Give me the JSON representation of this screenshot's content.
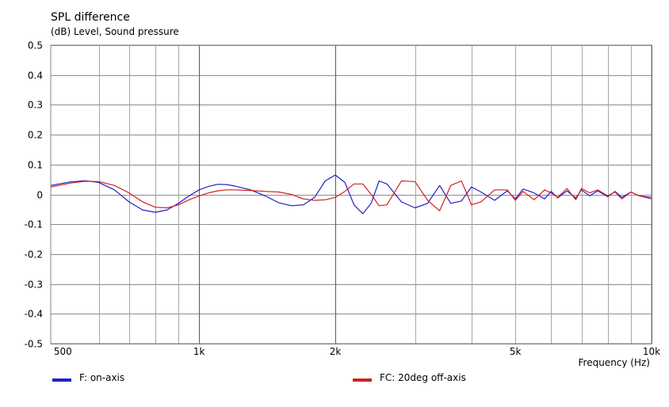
{
  "chart_data": {
    "type": "line",
    "title": "SPL difference",
    "subtitle": "(dB)  Level, Sound pressure",
    "xlabel": "Frequency  (Hz)",
    "x_scale": "log",
    "xlim": [
      470,
      10000
    ],
    "ylim": [
      -0.5,
      0.5
    ],
    "y_ticks": [
      {
        "value": 0.5,
        "label": "0.5"
      },
      {
        "value": 0.4,
        "label": "0.4"
      },
      {
        "value": 0.3,
        "label": "0.3"
      },
      {
        "value": 0.2,
        "label": "0.2"
      },
      {
        "value": 0.1,
        "label": "0.1"
      },
      {
        "value": 0,
        "label": "0"
      },
      {
        "value": -0.1,
        "label": "-0.1"
      },
      {
        "value": -0.2,
        "label": "-0.2"
      },
      {
        "value": -0.3,
        "label": "-0.3"
      },
      {
        "value": -0.4,
        "label": "-0.4"
      },
      {
        "value": -0.5,
        "label": "-0.5"
      }
    ],
    "x_tick_labels": [
      {
        "value": 500,
        "label": "500"
      },
      {
        "value": 1000,
        "label": "1k"
      },
      {
        "value": 2000,
        "label": "2k"
      },
      {
        "value": 5000,
        "label": "5k"
      },
      {
        "value": 10000,
        "label": "10k"
      }
    ],
    "x_major_grid": [
      1000,
      2000,
      10000
    ],
    "x_minor_grid": [
      600,
      700,
      800,
      900,
      3000,
      4000,
      5000,
      6000,
      7000,
      8000,
      9000
    ],
    "grid": true,
    "legend_placement": "bottom",
    "series": [
      {
        "name": "F: on-axis",
        "color": "#2020c8",
        "x": [
          470,
          520,
          560,
          600,
          650,
          700,
          750,
          800,
          850,
          900,
          950,
          1000,
          1050,
          1100,
          1150,
          1200,
          1300,
          1400,
          1500,
          1600,
          1700,
          1800,
          1900,
          2000,
          2100,
          2200,
          2300,
          2400,
          2500,
          2600,
          2800,
          3000,
          3200,
          3400,
          3600,
          3800,
          4000,
          4200,
          4500,
          4800,
          5000,
          5200,
          5500,
          5800,
          6000,
          6200,
          6500,
          6800,
          7000,
          7300,
          7600,
          8000,
          8300,
          8600,
          9000,
          9400,
          10000
        ],
        "y": [
          0.03,
          0.042,
          0.046,
          0.04,
          0.015,
          -0.025,
          -0.052,
          -0.06,
          -0.052,
          -0.03,
          -0.005,
          0.015,
          0.027,
          0.034,
          0.033,
          0.028,
          0.015,
          -0.005,
          -0.028,
          -0.038,
          -0.035,
          -0.01,
          0.045,
          0.065,
          0.04,
          -0.035,
          -0.065,
          -0.03,
          0.045,
          0.035,
          -0.025,
          -0.045,
          -0.03,
          0.03,
          -0.03,
          -0.022,
          0.025,
          0.008,
          -0.02,
          0.012,
          -0.015,
          0.018,
          0.005,
          -0.015,
          0.01,
          -0.012,
          0.012,
          -0.012,
          0.015,
          -0.005,
          0.012,
          -0.008,
          0.01,
          -0.01,
          0.008,
          -0.005,
          -0.01
        ]
      },
      {
        "name": "FC: 20deg off-axis",
        "color": "#d02020",
        "x": [
          470,
          520,
          560,
          600,
          650,
          700,
          750,
          800,
          850,
          900,
          950,
          1000,
          1050,
          1100,
          1150,
          1200,
          1300,
          1400,
          1500,
          1600,
          1700,
          1800,
          1900,
          2000,
          2100,
          2200,
          2300,
          2400,
          2500,
          2600,
          2800,
          3000,
          3200,
          3400,
          3600,
          3800,
          4000,
          4200,
          4500,
          4800,
          5000,
          5200,
          5500,
          5800,
          6000,
          6200,
          6500,
          6800,
          7000,
          7300,
          7600,
          8000,
          8300,
          8600,
          9000,
          9400,
          10000
        ],
        "y": [
          0.025,
          0.038,
          0.044,
          0.043,
          0.03,
          0.005,
          -0.025,
          -0.043,
          -0.045,
          -0.035,
          -0.018,
          -0.005,
          0.005,
          0.012,
          0.015,
          0.015,
          0.013,
          0.01,
          0.008,
          0.0,
          -0.015,
          -0.02,
          -0.018,
          -0.01,
          0.01,
          0.035,
          0.035,
          0.0,
          -0.038,
          -0.035,
          0.045,
          0.043,
          -0.02,
          -0.055,
          0.03,
          0.045,
          -0.035,
          -0.025,
          0.015,
          0.015,
          -0.02,
          0.01,
          -0.018,
          0.015,
          0.005,
          -0.01,
          0.02,
          -0.018,
          0.02,
          0.005,
          0.015,
          -0.005,
          0.008,
          -0.015,
          0.008,
          -0.005,
          -0.015
        ]
      }
    ]
  }
}
